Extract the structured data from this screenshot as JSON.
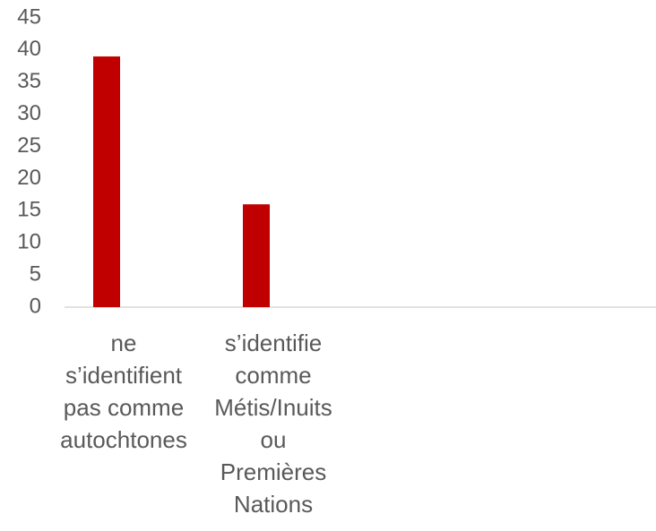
{
  "chart_data": {
    "type": "bar",
    "categories": [
      "ne s’identifient pas comme autochtones",
      "s’identifie comme Métis/Inuits ou Premières Nations",
      null,
      null
    ],
    "values": [
      39,
      16,
      null,
      null
    ],
    "color": "#c00000",
    "ylim": [
      0,
      45
    ],
    "yticks": [
      0,
      5,
      10,
      15,
      20,
      25,
      30,
      35,
      40,
      45
    ],
    "grid": false
  }
}
